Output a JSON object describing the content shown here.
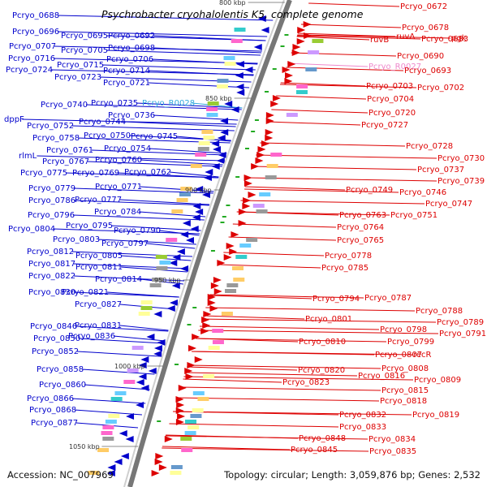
{
  "title": "Psychrobacter cryohalolentis K5, complete genome",
  "footer": {
    "accession": "Accession: NC_007969",
    "stats": "Topology: circular; Length: 3,059,876 bp; Genes: 2,532"
  },
  "colors": {
    "minus_strand": "#0000cc",
    "plus_strand": "#dd0000",
    "rna": "#33aadd",
    "pseudo": "#ee88cc",
    "backbone": "#777777"
  },
  "kbp_markers": [
    "800 kbp",
    "850 kbp",
    "900 kbp",
    "950 kbp",
    "1000 kbp",
    "1050 kbp"
  ],
  "left_labels": [
    "Pcryo_0688",
    "Pcryo_0696",
    "Pcryo_0695",
    "Pcryo_0692",
    "Pcryo_0698",
    "Pcryo_0707",
    "Pcryo_0705",
    "Pcryo_0706",
    "Pcryo_0716",
    "Pcryo_0715",
    "Pcryo_0714",
    "Pcryo_0724",
    "Pcryo_0723",
    "Pcryo_0721",
    "Pcryo_0740",
    "Pcryo_0735",
    "Pcryo_R0028",
    "Pcryo_0736",
    "dppF",
    "Pcryo_0752",
    "Pcryo_0744",
    "Pcryo_0758",
    "Pcryo_0750",
    "Pcryo_0745",
    "Pcryo_0761",
    "Pcryo_0754",
    "rlmL",
    "Pcryo_0767",
    "Pcryo_0760",
    "Pcryo_0775",
    "Pcryo_0769",
    "Pcryo_0762",
    "Pcryo_0779",
    "Pcryo_0771",
    "Pcryo_0786",
    "Pcryo_0777",
    "Pcryo_0784",
    "Pcryo_0796",
    "Pcryo_0795",
    "Pcryo_0804",
    "Pcryo_0790",
    "Pcryo_0803",
    "Pcryo_0797",
    "Pcryo_0812",
    "Pcryo_0805",
    "Pcryo_0817",
    "Pcryo_0811",
    "Pcryo_0822",
    "Pcryo_0814",
    "Pcryo_0830",
    "Pcryo_0821",
    "Pcryo_0827",
    "Pcryo_0846",
    "Pcryo_0831",
    "Pcryo_0850",
    "Pcryo_0836",
    "Pcryo_0852",
    "Pcryo_0858",
    "Pcryo_0860",
    "Pcryo_0866",
    "Pcryo_0868",
    "Pcryo_0877"
  ],
  "right_labels": [
    "Pcryo_0672",
    "Pcryo_0678",
    "ruvB",
    "ruvA",
    "Pcryo_0683",
    "pgk",
    "Pcryo_0690",
    "Pcryo_R0027",
    "Pcryo_0693",
    "Pcryo_0703",
    "Pcryo_0702",
    "Pcryo_0704",
    "Pcryo_0720",
    "Pcryo_0727",
    "Pcryo_0728",
    "Pcryo_0730",
    "Pcryo_0737",
    "Pcryo_0739",
    "Pcryo_0749",
    "Pcryo_0746",
    "Pcryo_0747",
    "Pcryo_0763",
    "Pcryo_0751",
    "Pcryo_0764",
    "Pcryo_0765",
    "Pcryo_0778",
    "Pcryo_0785",
    "Pcryo_0794",
    "Pcryo_0787",
    "Pcryo_0788",
    "Pcryo_0801",
    "Pcryo_0789",
    "Pcryo_0798",
    "Pcryo_0791",
    "Pcryo_0810",
    "Pcryo_0799",
    "Pcryo_0807",
    "recR",
    "Pcryo_0808",
    "Pcryo_0820",
    "Pcryo_0816",
    "Pcryo_0809",
    "Pcryo_0823",
    "Pcryo_0815",
    "Pcryo_0818",
    "Pcryo_0819",
    "Pcryo_0832",
    "Pcryo_0833",
    "Pcryo_0834",
    "Pcryo_0848",
    "Pcryo_0845",
    "Pcryo_0835"
  ]
}
